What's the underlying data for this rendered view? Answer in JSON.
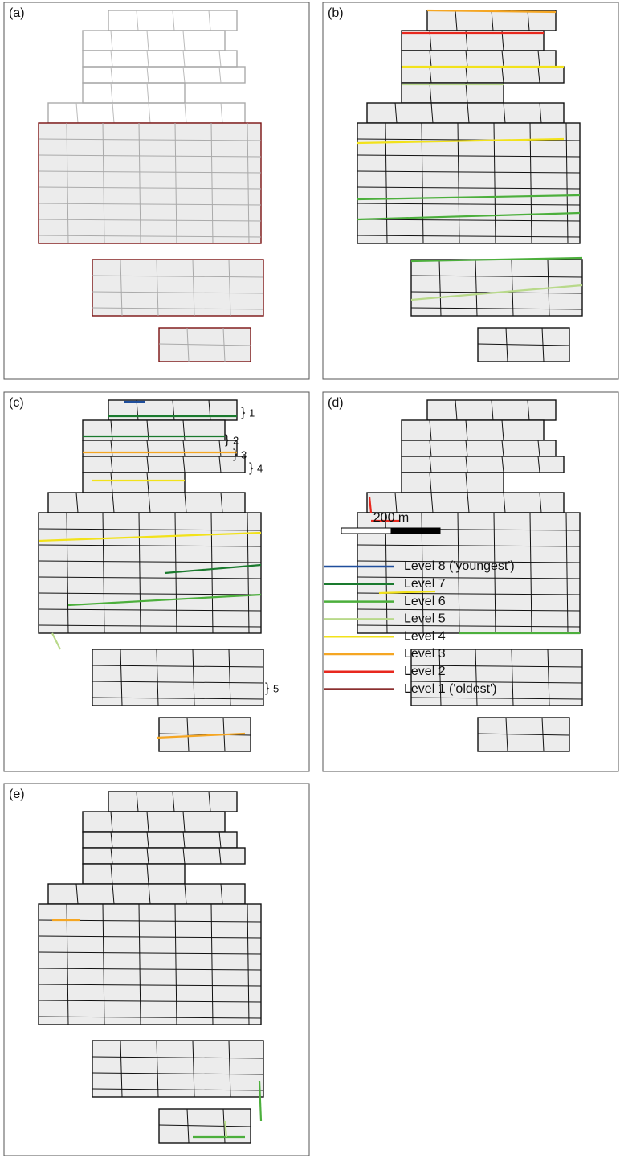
{
  "panels": [
    "(a)",
    "(b)",
    "(c)",
    "(d)",
    "(e)"
  ],
  "annotations": [
    "1",
    "2",
    "3",
    "4",
    "5"
  ],
  "scale_bar": {
    "label": "200 m"
  },
  "legend": [
    {
      "label": "Level 8 ('youngest')",
      "color": "#1f4e9c"
    },
    {
      "label": "Level 7",
      "color": "#1a7a2e"
    },
    {
      "label": "Level 6",
      "color": "#4caf3c"
    },
    {
      "label": "Level 5",
      "color": "#b8d98a"
    },
    {
      "label": "Level 4",
      "color": "#f2e21a"
    },
    {
      "label": "Level 3",
      "color": "#f5a623"
    },
    {
      "label": "Level 2",
      "color": "#e8281e"
    },
    {
      "label": "Level 1 ('oldest')",
      "color": "#7a1010"
    }
  ]
}
